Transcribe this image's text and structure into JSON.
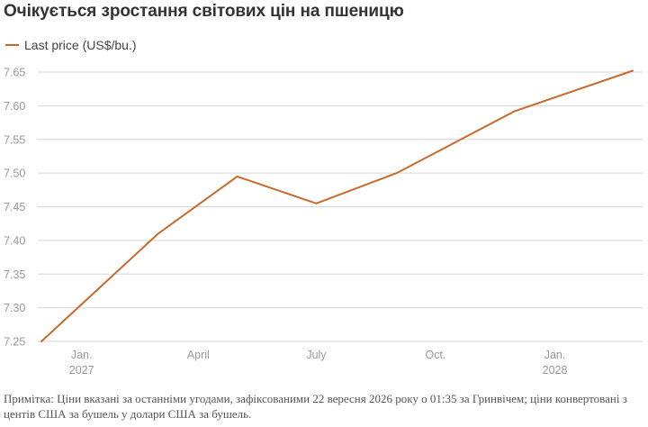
{
  "title": "Очікується зростання світових цін на пшеницю",
  "note": "Примітка: Ціни вказані за останніми угодами, зафіксованими 22 вересня 2026 року о 01:35 за Гринвічем; ціни конвертовані з центів США за бушель у долари США за бушель.",
  "colors": {
    "line": "#c8692a",
    "grid": "#d6d6d6",
    "tick_text": "#999999"
  },
  "chart_data": {
    "type": "line",
    "title": "Очікується зростання світових цін на пшеницю",
    "xlabel": "",
    "ylabel": "",
    "ylim": [
      7.25,
      7.65
    ],
    "yticks": [
      "7.25",
      "7.30",
      "7.35",
      "7.40",
      "7.45",
      "7.50",
      "7.55",
      "7.60",
      "7.65"
    ],
    "grid": true,
    "legend_position": "top-left",
    "x_tick_labels": [
      {
        "date": "2027-01-01",
        "line1": "Jan.",
        "line2": "2027"
      },
      {
        "date": "2027-04-01",
        "line1": "April",
        "line2": ""
      },
      {
        "date": "2027-07-01",
        "line1": "July",
        "line2": ""
      },
      {
        "date": "2027-10-01",
        "line1": "Oct.",
        "line2": ""
      },
      {
        "date": "2028-01-01",
        "line1": "Jan.",
        "line2": "2028"
      }
    ],
    "series": [
      {
        "name": "Last price (US$/bu.)",
        "points": [
          {
            "x": "2026-12-01",
            "y": 7.25
          },
          {
            "x": "2027-03-01",
            "y": 7.41
          },
          {
            "x": "2027-05-01",
            "y": 7.495
          },
          {
            "x": "2027-07-01",
            "y": 7.455
          },
          {
            "x": "2027-09-01",
            "y": 7.5
          },
          {
            "x": "2027-12-01",
            "y": 7.592
          },
          {
            "x": "2028-03-01",
            "y": 7.652
          }
        ]
      }
    ]
  }
}
